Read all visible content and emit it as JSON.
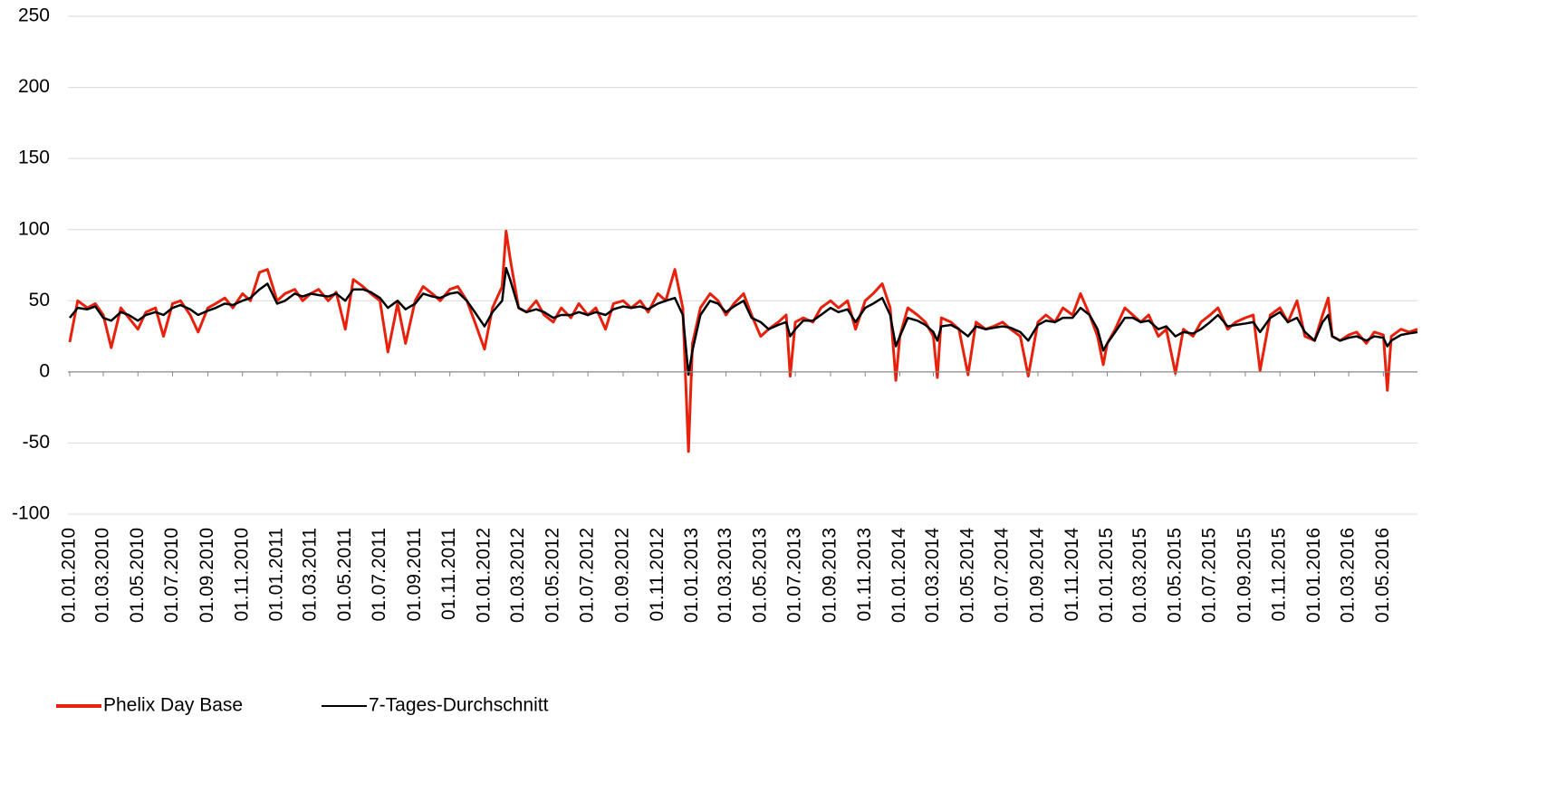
{
  "chart_data": {
    "type": "line",
    "x": [
      "01.01.2010",
      "15.01.2010",
      "01.02.2010",
      "15.02.2010",
      "01.03.2010",
      "15.03.2010",
      "01.04.2010",
      "15.04.2010",
      "01.05.2010",
      "15.05.2010",
      "01.06.2010",
      "15.06.2010",
      "01.07.2010",
      "15.07.2010",
      "01.08.2010",
      "15.08.2010",
      "01.09.2010",
      "15.09.2010",
      "01.10.2010",
      "15.10.2010",
      "01.11.2010",
      "15.11.2010",
      "01.12.2010",
      "15.12.2010",
      "01.01.2011",
      "15.01.2011",
      "01.02.2011",
      "15.02.2011",
      "01.03.2011",
      "15.03.2011",
      "01.04.2011",
      "15.04.2011",
      "01.05.2011",
      "15.05.2011",
      "01.06.2011",
      "15.06.2011",
      "01.07.2011",
      "15.07.2011",
      "01.08.2011",
      "15.08.2011",
      "01.09.2011",
      "15.09.2011",
      "01.10.2011",
      "15.10.2011",
      "01.11.2011",
      "15.11.2011",
      "01.12.2011",
      "15.12.2011",
      "01.01.2012",
      "15.01.2012",
      "01.02.2012",
      "08.02.2012",
      "15.02.2012",
      "01.03.2012",
      "15.03.2012",
      "01.04.2012",
      "15.04.2012",
      "01.05.2012",
      "15.05.2012",
      "01.06.2012",
      "15.06.2012",
      "01.07.2012",
      "15.07.2012",
      "01.08.2012",
      "15.08.2012",
      "01.09.2012",
      "15.09.2012",
      "01.10.2012",
      "15.10.2012",
      "01.11.2012",
      "15.11.2012",
      "01.12.2012",
      "15.12.2012",
      "25.12.2012",
      "01.01.2013",
      "15.01.2013",
      "01.02.2013",
      "15.02.2013",
      "01.03.2013",
      "15.03.2013",
      "01.04.2013",
      "15.04.2013",
      "01.05.2013",
      "15.05.2013",
      "01.06.2013",
      "15.06.2013",
      "22.06.2013",
      "01.07.2013",
      "15.07.2013",
      "01.08.2013",
      "15.08.2013",
      "01.09.2013",
      "15.09.2013",
      "01.10.2013",
      "15.10.2013",
      "01.11.2013",
      "15.11.2013",
      "01.12.2013",
      "15.12.2013",
      "25.12.2013",
      "01.01.2014",
      "15.01.2014",
      "01.02.2014",
      "15.02.2014",
      "01.03.2014",
      "08.03.2014",
      "15.03.2014",
      "01.04.2014",
      "15.04.2014",
      "01.05.2014",
      "15.05.2014",
      "01.06.2014",
      "15.06.2014",
      "01.07.2014",
      "15.07.2014",
      "01.08.2014",
      "15.08.2014",
      "01.09.2014",
      "15.09.2014",
      "01.10.2014",
      "15.10.2014",
      "01.11.2014",
      "15.11.2014",
      "01.12.2014",
      "15.12.2014",
      "25.12.2014",
      "01.01.2015",
      "15.01.2015",
      "01.02.2015",
      "15.02.2015",
      "01.03.2015",
      "15.03.2015",
      "01.04.2015",
      "15.04.2015",
      "01.05.2015",
      "15.05.2015",
      "01.06.2015",
      "15.06.2015",
      "01.07.2015",
      "15.07.2015",
      "01.08.2015",
      "15.08.2015",
      "01.09.2015",
      "15.09.2015",
      "27.09.2015",
      "15.10.2015",
      "01.11.2015",
      "15.11.2015",
      "01.12.2015",
      "15.12.2015",
      "01.01.2016",
      "15.01.2016",
      "25.01.2016",
      "01.02.2016",
      "15.02.2016",
      "01.03.2016",
      "15.03.2016",
      "01.04.2016",
      "15.04.2016",
      "01.05.2016",
      "08.05.2016",
      "15.05.2016",
      "01.06.2016",
      "15.06.2016",
      "30.06.2016"
    ],
    "series": [
      {
        "name": "Phelix Day Base",
        "color": "#e8210c",
        "values": [
          21,
          50,
          45,
          48,
          40,
          17,
          45,
          38,
          30,
          42,
          45,
          25,
          48,
          50,
          40,
          28,
          45,
          48,
          52,
          45,
          55,
          50,
          70,
          72,
          50,
          55,
          58,
          50,
          55,
          58,
          50,
          56,
          30,
          65,
          60,
          55,
          50,
          14,
          48,
          20,
          50,
          60,
          55,
          50,
          58,
          60,
          50,
          35,
          16,
          45,
          60,
          99,
          80,
          45,
          42,
          50,
          40,
          35,
          45,
          38,
          48,
          40,
          45,
          30,
          48,
          50,
          45,
          50,
          42,
          55,
          50,
          72,
          45,
          -56,
          20,
          45,
          55,
          50,
          40,
          48,
          55,
          40,
          25,
          30,
          35,
          40,
          -3,
          35,
          38,
          35,
          45,
          50,
          45,
          50,
          30,
          50,
          55,
          62,
          45,
          -6,
          25,
          45,
          40,
          35,
          25,
          -4,
          38,
          35,
          30,
          -2,
          35,
          30,
          32,
          35,
          30,
          25,
          -3,
          35,
          40,
          35,
          45,
          40,
          55,
          40,
          25,
          5,
          20,
          30,
          45,
          40,
          35,
          40,
          25,
          30,
          -1,
          30,
          25,
          35,
          40,
          45,
          30,
          35,
          38,
          40,
          1,
          40,
          45,
          35,
          50,
          25,
          22,
          40,
          52,
          25,
          22,
          26,
          28,
          20,
          28,
          26,
          -13,
          25,
          30,
          28,
          30
        ]
      },
      {
        "name": "7-Tages-Durchschnitt",
        "color": "#000000",
        "values": [
          38,
          45,
          44,
          46,
          38,
          36,
          42,
          40,
          36,
          40,
          42,
          40,
          45,
          47,
          44,
          40,
          43,
          45,
          48,
          47,
          50,
          52,
          58,
          62,
          48,
          50,
          55,
          53,
          55,
          54,
          53,
          55,
          50,
          58,
          58,
          56,
          52,
          45,
          50,
          44,
          48,
          55,
          53,
          52,
          55,
          56,
          50,
          42,
          32,
          42,
          50,
          73,
          65,
          45,
          42,
          44,
          42,
          38,
          40,
          40,
          42,
          40,
          42,
          40,
          44,
          46,
          45,
          46,
          44,
          48,
          50,
          52,
          40,
          -2,
          15,
          40,
          50,
          48,
          42,
          46,
          50,
          38,
          35,
          30,
          33,
          35,
          25,
          30,
          36,
          36,
          40,
          45,
          42,
          44,
          35,
          45,
          48,
          52,
          40,
          18,
          25,
          38,
          36,
          33,
          28,
          22,
          32,
          33,
          30,
          25,
          32,
          30,
          31,
          32,
          31,
          28,
          22,
          33,
          36,
          35,
          38,
          38,
          45,
          40,
          30,
          15,
          20,
          28,
          38,
          38,
          35,
          36,
          30,
          32,
          25,
          28,
          27,
          30,
          35,
          40,
          32,
          33,
          34,
          35,
          28,
          38,
          42,
          35,
          38,
          28,
          22,
          35,
          40,
          25,
          22,
          24,
          25,
          22,
          25,
          24,
          18,
          22,
          26,
          27,
          28
        ]
      }
    ],
    "xlim": [
      "01.01.2010",
      "30.06.2016"
    ],
    "xticks": [
      "01.01.2010",
      "01.03.2010",
      "01.05.2010",
      "01.07.2010",
      "01.09.2010",
      "01.11.2010",
      "01.01.2011",
      "01.03.2011",
      "01.05.2011",
      "01.07.2011",
      "01.09.2011",
      "01.11.2011",
      "01.01.2012",
      "01.03.2012",
      "01.05.2012",
      "01.07.2012",
      "01.09.2012",
      "01.11.2012",
      "01.01.2013",
      "01.03.2013",
      "01.05.2013",
      "01.07.2013",
      "01.09.2013",
      "01.11.2013",
      "01.01.2014",
      "01.03.2014",
      "01.05.2014",
      "01.07.2014",
      "01.09.2014",
      "01.11.2014",
      "01.01.2015",
      "01.03.2015",
      "01.05.2015",
      "01.07.2015",
      "01.09.2015",
      "01.11.2015",
      "01.01.2016",
      "01.03.2016",
      "01.05.2016"
    ],
    "ylim": [
      -100,
      250
    ],
    "yticks": [
      -100,
      -50,
      0,
      50,
      100,
      150,
      200,
      250
    ],
    "grid": true,
    "legend": "bottom"
  }
}
